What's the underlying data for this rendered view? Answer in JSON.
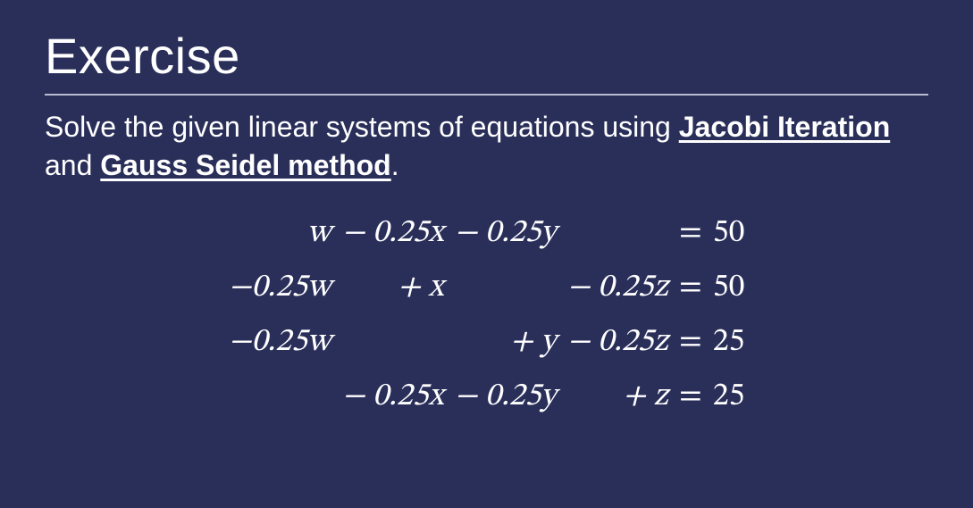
{
  "slide": {
    "background_color": "#2a2f5a",
    "text_color": "#ffffff",
    "rule_color": "#b8bbd0",
    "title": "Exercise",
    "title_fontsize": 56,
    "prompt_fontsize": 32,
    "eq_fontsize": 36,
    "prompt_parts": {
      "p1": "Solve the given linear systems of equations using ",
      "hl1": "Jacobi Iteration",
      "p2": " and ",
      "hl2": "Gauss Seidel method",
      "p3": "."
    },
    "equations": {
      "rows": [
        {
          "c1": "w",
          "c2": "− 0.25x",
          "c3": "− 0.25y",
          "c4": "",
          "eq": "=",
          "rhs": "50"
        },
        {
          "c1": "−0.25w",
          "c2": "+       x",
          "c3": "",
          "c4": "− 0.25z",
          "eq": "=",
          "rhs": "50"
        },
        {
          "c1": "−0.25w",
          "c2": "",
          "c3": "+       y",
          "c4": "− 0.25z",
          "eq": "=",
          "rhs": "25"
        },
        {
          "c1": "",
          "c2": "− 0.25x",
          "c3": "− 0.25y",
          "c4": "+       z",
          "eq": "=",
          "rhs": "25"
        }
      ]
    }
  }
}
